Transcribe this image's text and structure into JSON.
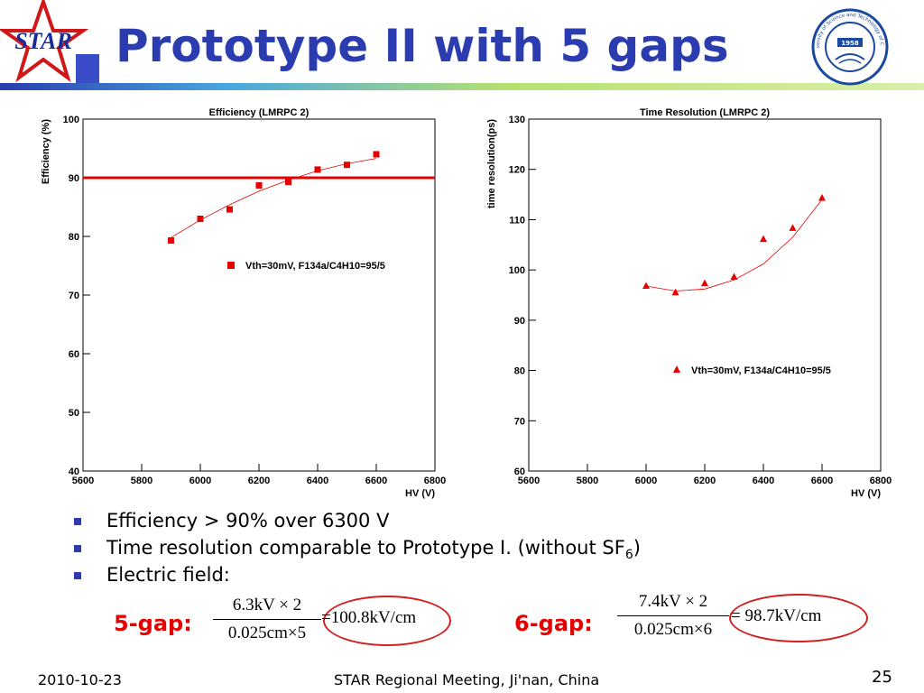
{
  "header": {
    "title": "Prototype II with 5 gaps",
    "star_logo_text": "STAR",
    "ustc_logo_year": "1958",
    "ustc_logo_text": "University of Science and Technology of China"
  },
  "colors": {
    "title": "#2a3cb0",
    "marker": "#e60000",
    "accent_red": "#e60000"
  },
  "chart_data": [
    {
      "type": "scatter",
      "title": "Efficiency (LMRPC 2)",
      "xlabel": "HV (V)",
      "ylabel": "Efficiency (%)",
      "xlim": [
        5600,
        6800
      ],
      "ylim": [
        40,
        100
      ],
      "xticks": [
        5600,
        5800,
        6000,
        6200,
        6400,
        6600,
        6800
      ],
      "yticks": [
        40,
        50,
        60,
        70,
        80,
        90,
        100
      ],
      "marker": "square",
      "series": [
        {
          "name": "Vth=30mV, F134a/C4H10=95/5",
          "x": [
            5900,
            6000,
            6100,
            6200,
            6300,
            6400,
            6500,
            6600
          ],
          "y": [
            79.3,
            83.0,
            84.6,
            88.7,
            89.3,
            91.4,
            92.2,
            94.0
          ]
        }
      ],
      "fit_curve": {
        "x": [
          5900,
          6000,
          6100,
          6200,
          6300,
          6400,
          6500,
          6600
        ],
        "y": [
          79.8,
          82.8,
          85.4,
          87.7,
          89.6,
          91.2,
          92.4,
          93.3
        ]
      },
      "reference_line": {
        "y": 90
      },
      "legend": "right"
    },
    {
      "type": "scatter",
      "title": "Time Resolution (LMRPC 2)",
      "xlabel": "HV (V)",
      "ylabel": "time resolution(ps)",
      "xlim": [
        5600,
        6800
      ],
      "ylim": [
        60,
        130
      ],
      "xticks": [
        5600,
        5800,
        6000,
        6200,
        6400,
        6600,
        6800
      ],
      "yticks": [
        60,
        70,
        80,
        90,
        100,
        110,
        120,
        130
      ],
      "marker": "triangle",
      "series": [
        {
          "name": "Vth=30mV, F134a/C4H10=95/5",
          "x": [
            6000,
            6100,
            6200,
            6300,
            6400,
            6500,
            6600
          ],
          "y": [
            96.8,
            95.5,
            97.3,
            98.6,
            106.1,
            108.3,
            114.3
          ]
        }
      ],
      "fit_curve": {
        "x": [
          6000,
          6100,
          6200,
          6300,
          6400,
          6500,
          6600
        ],
        "y": [
          96.8,
          95.8,
          96.2,
          98.0,
          101.2,
          106.5,
          114.0
        ]
      },
      "legend": "bottom-right"
    }
  ],
  "bullets": {
    "item1": "Efficiency > 90% over 6300 V",
    "item2_main": "Time resolution comparable to Prototype I. (without SF",
    "item2_sub": "6",
    "item2_end": ")",
    "item3": "Electric field:"
  },
  "formulas": {
    "gap5_label": "5-gap:",
    "gap5_num": "6.3kV × 2",
    "gap5_den": "0.025cm×5",
    "gap5_result": "=100.8kV/cm",
    "gap6_label": "6-gap:",
    "gap6_num": "7.4kV × 2",
    "gap6_den": "0.025cm×6",
    "gap6_result": "= 98.7kV/cm"
  },
  "footer": {
    "date": "2010-10-23",
    "event": "STAR Regional Meeting, Ji'nan, China",
    "page": "25"
  }
}
